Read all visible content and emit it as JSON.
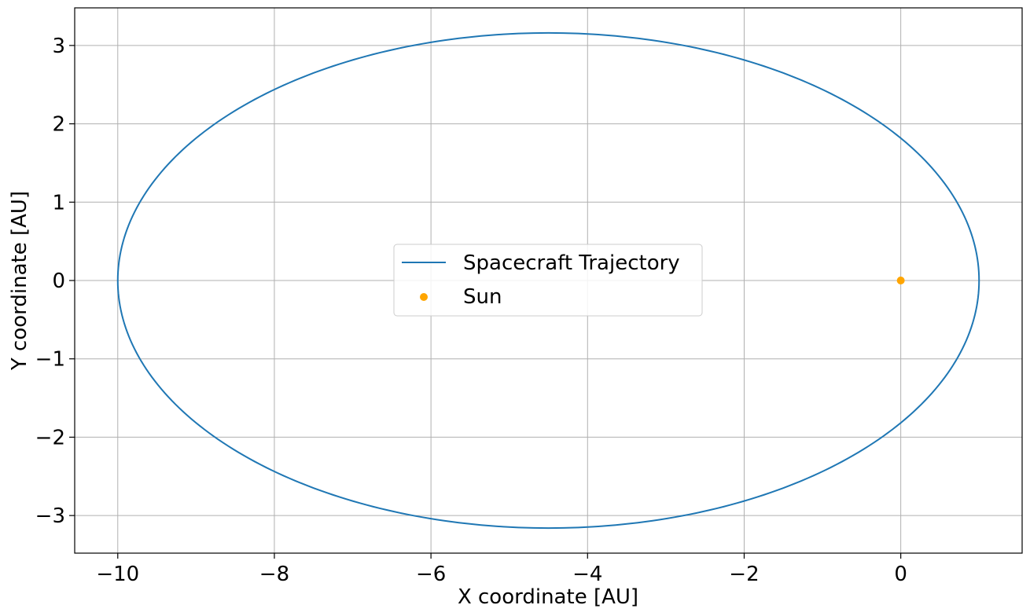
{
  "chart_data": {
    "type": "line",
    "title": "",
    "xlabel": "X coordinate [AU]",
    "ylabel": "Y coordinate [AU]",
    "xlim": [
      -10.55,
      1.55
    ],
    "ylim": [
      -3.48,
      3.48
    ],
    "grid": true,
    "legend_placement": "center",
    "xticks": [
      -10,
      -8,
      -6,
      -4,
      -2,
      0
    ],
    "xtick_labels": [
      "−10",
      "−8",
      "−6",
      "−4",
      "−2",
      "0"
    ],
    "yticks": [
      -3,
      -2,
      -1,
      0,
      1,
      2,
      3
    ],
    "ytick_labels": [
      "−3",
      "−2",
      "−1",
      "0",
      "1",
      "2",
      "3"
    ],
    "series": [
      {
        "name": "Spacecraft Trajectory",
        "kind": "line",
        "color": "#1f77b4",
        "orbit": {
          "center_x": -4.5,
          "center_y": 0,
          "semi_major_axis": 5.5,
          "semi_minor_axis": 3.16,
          "x_range": [
            -10.0,
            1.0
          ]
        }
      },
      {
        "name": "Sun",
        "kind": "scatter",
        "color": "#ffa500",
        "points": [
          [
            0,
            0
          ]
        ]
      }
    ]
  }
}
